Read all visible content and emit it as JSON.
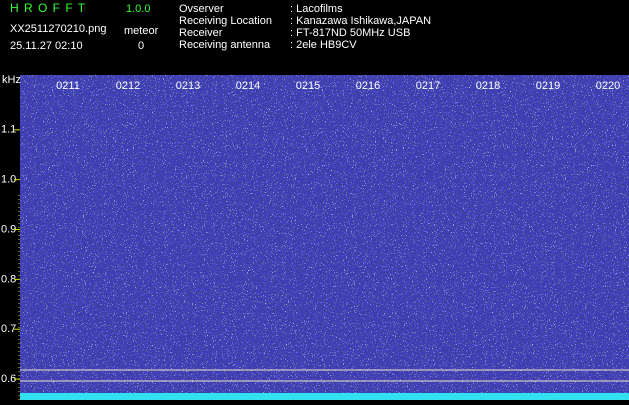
{
  "chart_data": {
    "type": "spectrogram",
    "app_title": "H R O F F T",
    "version": "1.0.0",
    "file_name": "XX2511270210.png",
    "timestamp": "25.11.27 02:10",
    "meteor_label": "meteor",
    "meteor_count": 0,
    "info": [
      {
        "label": "Ovserver",
        "value": ": Lacofilms"
      },
      {
        "label": "Receiving Location",
        "value": ": Kanazawa Ishikawa,JAPAN"
      },
      {
        "label": "Receiver",
        "value": ": FT-817ND 50MHz USB"
      },
      {
        "label": "Receiving antenna",
        "value": ": 2ele HB9CV"
      }
    ],
    "y_label": "kHz",
    "categories": [
      "0211",
      "0212",
      "0213",
      "0214",
      "0215",
      "0216",
      "0217",
      "0218",
      "0219",
      "0220"
    ],
    "ylim": [
      0.558,
      1.21
    ],
    "yticks": [
      1.1,
      {
        "value": 1,
        "label": "1.0"
      },
      0.9,
      0.8,
      0.7,
      0.6
    ]
  }
}
